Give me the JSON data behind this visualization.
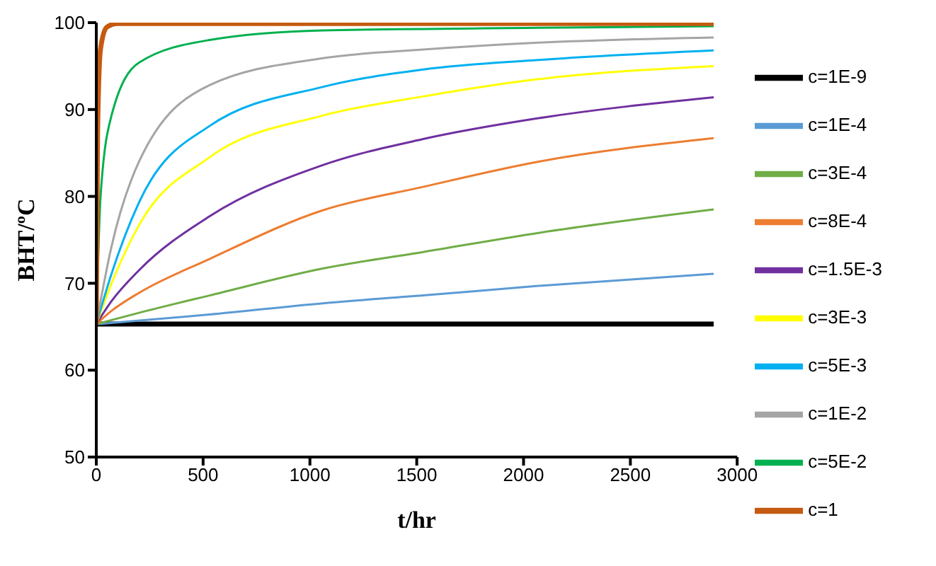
{
  "chart_data": {
    "type": "line",
    "xlabel": "t/hr",
    "ylabel": "BHT/ºC",
    "xlim": [
      0,
      3000
    ],
    "xticks": [
      0,
      500,
      1000,
      1500,
      2000,
      2500,
      3000
    ],
    "ylim": [
      50,
      100
    ],
    "yticks": [
      50,
      60,
      70,
      80,
      90,
      100
    ],
    "grid": false,
    "legend": "right",
    "marker": "none",
    "line_style": "solid",
    "series": [
      {
        "name": "c=1E-9",
        "color": "#000000",
        "x": [
          0,
          2890
        ],
        "values": [
          65.3,
          65.3
        ]
      },
      {
        "name": "c=1E-4",
        "color": "#5b9bd5",
        "x": [
          0,
          530,
          1060,
          1530,
          2070,
          2890
        ],
        "values": [
          65.3,
          66.4,
          67.7,
          68.6,
          69.7,
          71.1
        ]
      },
      {
        "name": "c=3E-4",
        "color": "#70ad47",
        "x": [
          0,
          200,
          530,
          1060,
          1530,
          2070,
          2890
        ],
        "values": [
          65.3,
          66.6,
          68.6,
          71.7,
          73.6,
          75.8,
          78.5
        ]
      },
      {
        "name": "c=8E-4",
        "color": "#ed7d31",
        "x": [
          0,
          70,
          200,
          530,
          1060,
          1530,
          2070,
          2890
        ],
        "values": [
          65.3,
          66.8,
          68.9,
          72.8,
          78.4,
          81.1,
          84.0,
          86.7
        ]
      },
      {
        "name": "c=1.5E-3",
        "color": "#7030a0",
        "x": [
          0,
          70,
          200,
          530,
          1060,
          1530,
          2070,
          2890
        ],
        "values": [
          65.3,
          67.9,
          71.5,
          77.7,
          83.6,
          86.6,
          89.0,
          91.4
        ]
      },
      {
        "name": "c=3E-3",
        "color": "#ffff00",
        "x": [
          0,
          70,
          200,
          530,
          1060,
          1530,
          2070,
          2890
        ],
        "values": [
          65.3,
          69.9,
          76.7,
          84.5,
          89.3,
          91.5,
          93.5,
          95.0
        ]
      },
      {
        "name": "c=5E-3",
        "color": "#00b0f0",
        "x": [
          0,
          70,
          200,
          530,
          1060,
          1530,
          2070,
          2890
        ],
        "values": [
          65.3,
          71.0,
          79.3,
          88.1,
          92.6,
          94.6,
          95.7,
          96.8
        ]
      },
      {
        "name": "c=1E-2",
        "color": "#a5a5a5",
        "x": [
          0,
          70,
          200,
          530,
          1060,
          1530,
          2070,
          2890
        ],
        "values": [
          65.3,
          74.1,
          84.0,
          92.8,
          95.9,
          96.9,
          97.7,
          98.3
        ]
      },
      {
        "name": "c=5E-2",
        "color": "#00b050",
        "x": [
          0,
          20,
          70,
          200,
          530,
          1060,
          2070,
          2890
        ],
        "values": [
          65.3,
          80.0,
          89.2,
          95.4,
          98.0,
          99.1,
          99.4,
          99.6
        ]
      },
      {
        "name": "c=1",
        "color": "#c55a11",
        "x": [
          0,
          5,
          10,
          20,
          50,
          100,
          2890
        ],
        "values": [
          65.3,
          85.0,
          92.0,
          97.0,
          99.5,
          99.9,
          99.9
        ]
      }
    ]
  }
}
